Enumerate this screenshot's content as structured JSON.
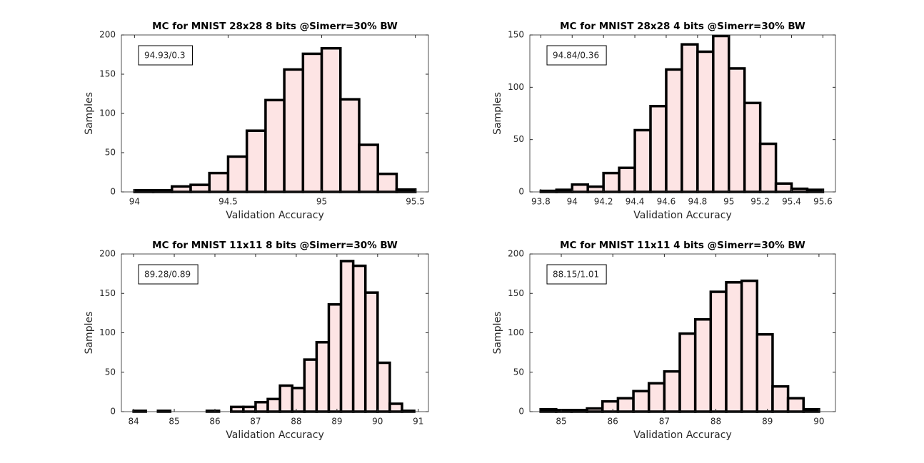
{
  "chart_data": [
    {
      "type": "histogram",
      "title": "MC for MNIST 28x28 8 bits @Simerr=30% BW",
      "xlabel": "Validation Accuracy",
      "ylabel": "Samples",
      "annotation": "94.93/0.3",
      "bins": [
        94.0,
        94.1,
        94.2,
        94.3,
        94.4,
        94.5,
        94.6,
        94.7,
        94.8,
        94.9,
        95.0,
        95.1,
        95.2,
        95.3,
        95.4,
        95.5
      ],
      "counts": [
        2,
        2,
        7,
        9,
        24,
        45,
        78,
        117,
        156,
        176,
        183,
        118,
        60,
        23,
        3
      ],
      "color": "#fde4e4",
      "edgecolor": "#000000",
      "xlim": [
        93.93,
        95.57
      ],
      "ylim": [
        0,
        200
      ],
      "xticks": [
        94,
        94.5,
        95,
        95.5
      ],
      "yticks": [
        0,
        50,
        100,
        150,
        200
      ]
    },
    {
      "type": "histogram",
      "title": "MC for MNIST 28x28 4 bits @Simerr=30% BW",
      "xlabel": "Validation Accuracy",
      "ylabel": "Samples",
      "annotation": "94.84/0.36",
      "bins": [
        93.8,
        93.9,
        94.0,
        94.1,
        94.2,
        94.3,
        94.4,
        94.5,
        94.6,
        94.7,
        94.8,
        94.9,
        95.0,
        95.1,
        95.2,
        95.3,
        95.4,
        95.5,
        95.6
      ],
      "counts": [
        1,
        2,
        7,
        5,
        18,
        23,
        59,
        82,
        117,
        141,
        134,
        149,
        118,
        85,
        46,
        8,
        3,
        2
      ],
      "color": "#fde4e4",
      "edgecolor": "#000000",
      "xlim": [
        93.73,
        95.68
      ],
      "ylim": [
        0,
        150
      ],
      "xticks": [
        93.8,
        94,
        94.2,
        94.4,
        94.6,
        94.8,
        95,
        95.2,
        95.4,
        95.6
      ],
      "yticks": [
        0,
        50,
        100,
        150
      ]
    },
    {
      "type": "histogram",
      "title": "MC for MNIST 11x11 8 bits @Simerr=30% BW",
      "xlabel": "Validation Accuracy",
      "ylabel": "Samples",
      "annotation": "89.28/0.89",
      "bins": [
        84.0,
        84.3,
        84.6,
        84.9,
        85.2,
        85.5,
        85.8,
        86.1,
        86.4,
        86.7,
        87.0,
        87.3,
        87.6,
        87.9,
        88.2,
        88.5,
        88.8,
        89.1,
        89.4,
        89.7,
        90.0,
        90.3,
        90.6,
        90.9
      ],
      "counts": [
        1,
        0,
        1,
        0,
        0,
        0,
        1,
        0,
        6,
        6,
        12,
        16,
        33,
        30,
        66,
        88,
        136,
        191,
        185,
        151,
        62,
        10,
        1
      ],
      "color": "#fde4e4",
      "edgecolor": "#000000",
      "xlim": [
        83.7,
        91.25
      ],
      "ylim": [
        0,
        200
      ],
      "xticks": [
        84,
        85,
        86,
        87,
        88,
        89,
        90,
        91
      ],
      "yticks": [
        0,
        50,
        100,
        150,
        200
      ]
    },
    {
      "type": "histogram",
      "title": "MC for MNIST 11x11 4 bits @Simerr=30% BW",
      "xlabel": "Validation Accuracy",
      "ylabel": "Samples",
      "annotation": "88.15/1.01",
      "bins": [
        84.6,
        84.9,
        85.2,
        85.5,
        85.8,
        86.1,
        86.4,
        86.7,
        87.0,
        87.3,
        87.6,
        87.9,
        88.2,
        88.5,
        88.8,
        89.1,
        89.4,
        89.7,
        90.0
      ],
      "counts": [
        3,
        2,
        2,
        4,
        13,
        17,
        26,
        36,
        51,
        99,
        117,
        152,
        164,
        166,
        98,
        32,
        17,
        3
      ],
      "color": "#fde4e4",
      "edgecolor": "#000000",
      "xlim": [
        84.39,
        90.32
      ],
      "ylim": [
        0,
        200
      ],
      "xticks": [
        85,
        86,
        87,
        88,
        89,
        90
      ],
      "yticks": [
        0,
        50,
        100,
        150,
        200
      ]
    }
  ]
}
